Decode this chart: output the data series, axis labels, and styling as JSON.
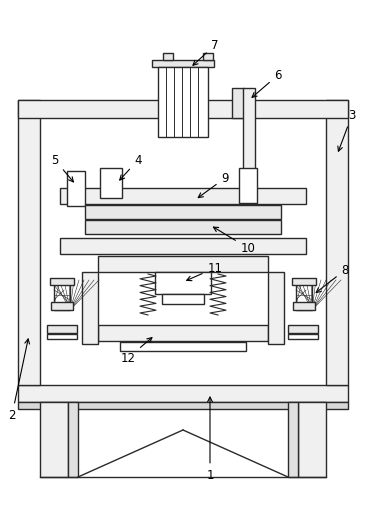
{
  "bg_color": "#ffffff",
  "lc": "#2a2a2a",
  "lw": 1.0,
  "fig_w": 3.66,
  "fig_h": 5.11,
  "dpi": 100
}
